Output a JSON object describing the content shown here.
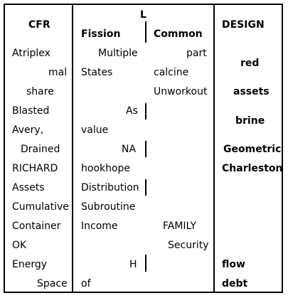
{
  "headers": {
    "cfr": "CFR",
    "l": "L",
    "fission": "Fission",
    "common": "Common",
    "design": "DESIGN"
  },
  "cfr_rows": [
    "Atriplex",
    "mal",
    "share",
    "Blasted",
    "Avery,",
    "Drained",
    "RICHARD",
    "Assets",
    "Cumulative",
    "Container",
    "OK",
    "Energy",
    "Space"
  ],
  "fission_rows": [
    "Multiple",
    "States",
    "",
    "As",
    "value",
    "NA",
    "hookhope",
    "Distribution",
    "Subroutine",
    "Income",
    "",
    "H",
    "of"
  ],
  "common_rows": [
    "part",
    "calcine",
    "Unworkout",
    "",
    "",
    "",
    "",
    "",
    "",
    "FAMILY",
    "Security",
    "",
    ""
  ],
  "design_rows": [
    "red",
    "assets",
    "brine",
    "Geometric",
    "Charleston",
    "flow",
    "debt"
  ]
}
